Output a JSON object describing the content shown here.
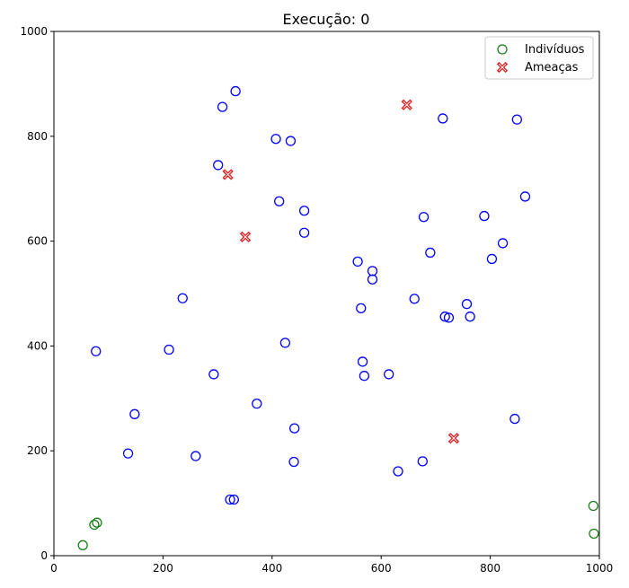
{
  "chart_data": {
    "type": "scatter",
    "title": "Execução: 0",
    "xlabel": "",
    "ylabel": "",
    "xlim": [
      0,
      1000
    ],
    "ylim": [
      0,
      1000
    ],
    "x_ticks": [
      0,
      200,
      400,
      600,
      800,
      1000
    ],
    "y_ticks": [
      0,
      200,
      400,
      600,
      800,
      1000
    ],
    "grid": false,
    "legend_position": "top-right",
    "series": [
      {
        "name": "Indivíduos",
        "marker": "circle",
        "color": "#1a7f1a",
        "points": [
          [
            979,
            978
          ],
          [
            989,
            95
          ],
          [
            990,
            42
          ],
          [
            53,
            20
          ],
          [
            74,
            59
          ],
          [
            79,
            63
          ]
        ]
      },
      {
        "name": "Ameaças",
        "marker": "x",
        "color": "#e31a1c",
        "points": [
          [
            647,
            860
          ],
          [
            319,
            727
          ],
          [
            351,
            608
          ],
          [
            733,
            224
          ]
        ]
      },
      {
        "name": "",
        "marker": "circle",
        "color": "#0000ff",
        "points": [
          [
            333,
            886
          ],
          [
            309,
            856
          ],
          [
            713,
            834
          ],
          [
            849,
            832
          ],
          [
            407,
            795
          ],
          [
            434,
            791
          ],
          [
            301,
            745
          ],
          [
            864,
            685
          ],
          [
            413,
            676
          ],
          [
            459,
            658
          ],
          [
            678,
            646
          ],
          [
            789,
            648
          ],
          [
            459,
            616
          ],
          [
            823,
            596
          ],
          [
            690,
            578
          ],
          [
            803,
            566
          ],
          [
            557,
            561
          ],
          [
            584,
            543
          ],
          [
            584,
            527
          ],
          [
            236,
            491
          ],
          [
            661,
            490
          ],
          [
            757,
            480
          ],
          [
            563,
            472
          ],
          [
            717,
            456
          ],
          [
            724,
            454
          ],
          [
            763,
            456
          ],
          [
            424,
            406
          ],
          [
            77,
            390
          ],
          [
            211,
            393
          ],
          [
            566,
            370
          ],
          [
            293,
            346
          ],
          [
            569,
            343
          ],
          [
            614,
            346
          ],
          [
            372,
            290
          ],
          [
            148,
            270
          ],
          [
            845,
            261
          ],
          [
            441,
            243
          ],
          [
            136,
            195
          ],
          [
            260,
            190
          ],
          [
            440,
            179
          ],
          [
            676,
            180
          ],
          [
            631,
            161
          ],
          [
            323,
            107
          ],
          [
            330,
            107
          ]
        ]
      }
    ]
  }
}
